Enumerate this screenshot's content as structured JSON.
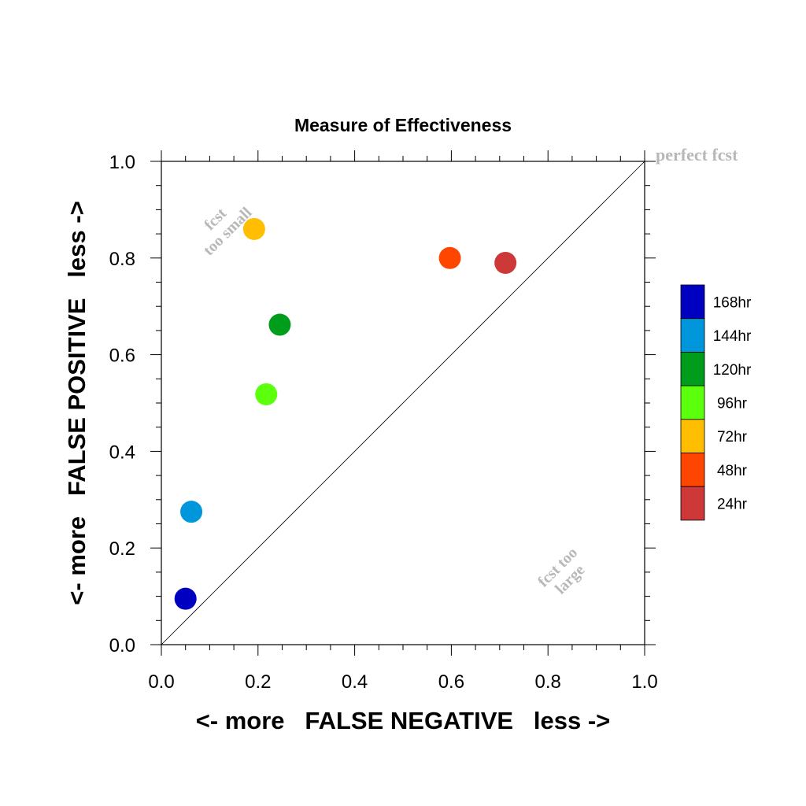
{
  "chart_data": {
    "type": "scatter",
    "title": "Measure of Effectiveness",
    "xlabel": "<- more   FALSE NEGATIVE   less ->",
    "ylabel": "<- more   FALSE POSITIVE   less ->",
    "xlim": [
      0.0,
      1.0
    ],
    "ylim": [
      0.0,
      1.0
    ],
    "x_ticks": [
      "0.0",
      "0.2",
      "0.4",
      "0.6",
      "0.8",
      "1.0"
    ],
    "y_ticks": [
      "0.0",
      "0.2",
      "0.4",
      "0.6",
      "0.8",
      "1.0"
    ],
    "grid": false,
    "reference_line": {
      "from": [
        0,
        0
      ],
      "to": [
        1,
        1
      ]
    },
    "annotations": {
      "perfect": "perfect fcst",
      "too_small_1": "fcst",
      "too_small_2": "too small",
      "too_large_1": "fcst too",
      "too_large_2": "large"
    },
    "legend_position": "right",
    "series": [
      {
        "name": "168hr",
        "color": "#0000c0",
        "x": 0.05,
        "y": 0.095
      },
      {
        "name": "144hr",
        "color": "#0096dc",
        "x": 0.062,
        "y": 0.275
      },
      {
        "name": "120hr",
        "color": "#009c1c",
        "x": 0.245,
        "y": 0.662
      },
      {
        "name": "96hr",
        "color": "#5cff0c",
        "x": 0.217,
        "y": 0.518
      },
      {
        "name": "72hr",
        "color": "#ffbe00",
        "x": 0.192,
        "y": 0.86
      },
      {
        "name": "48hr",
        "color": "#ff4600",
        "x": 0.597,
        "y": 0.8
      },
      {
        "name": "24hr",
        "color": "#cd3838",
        "x": 0.712,
        "y": 0.79
      }
    ]
  }
}
